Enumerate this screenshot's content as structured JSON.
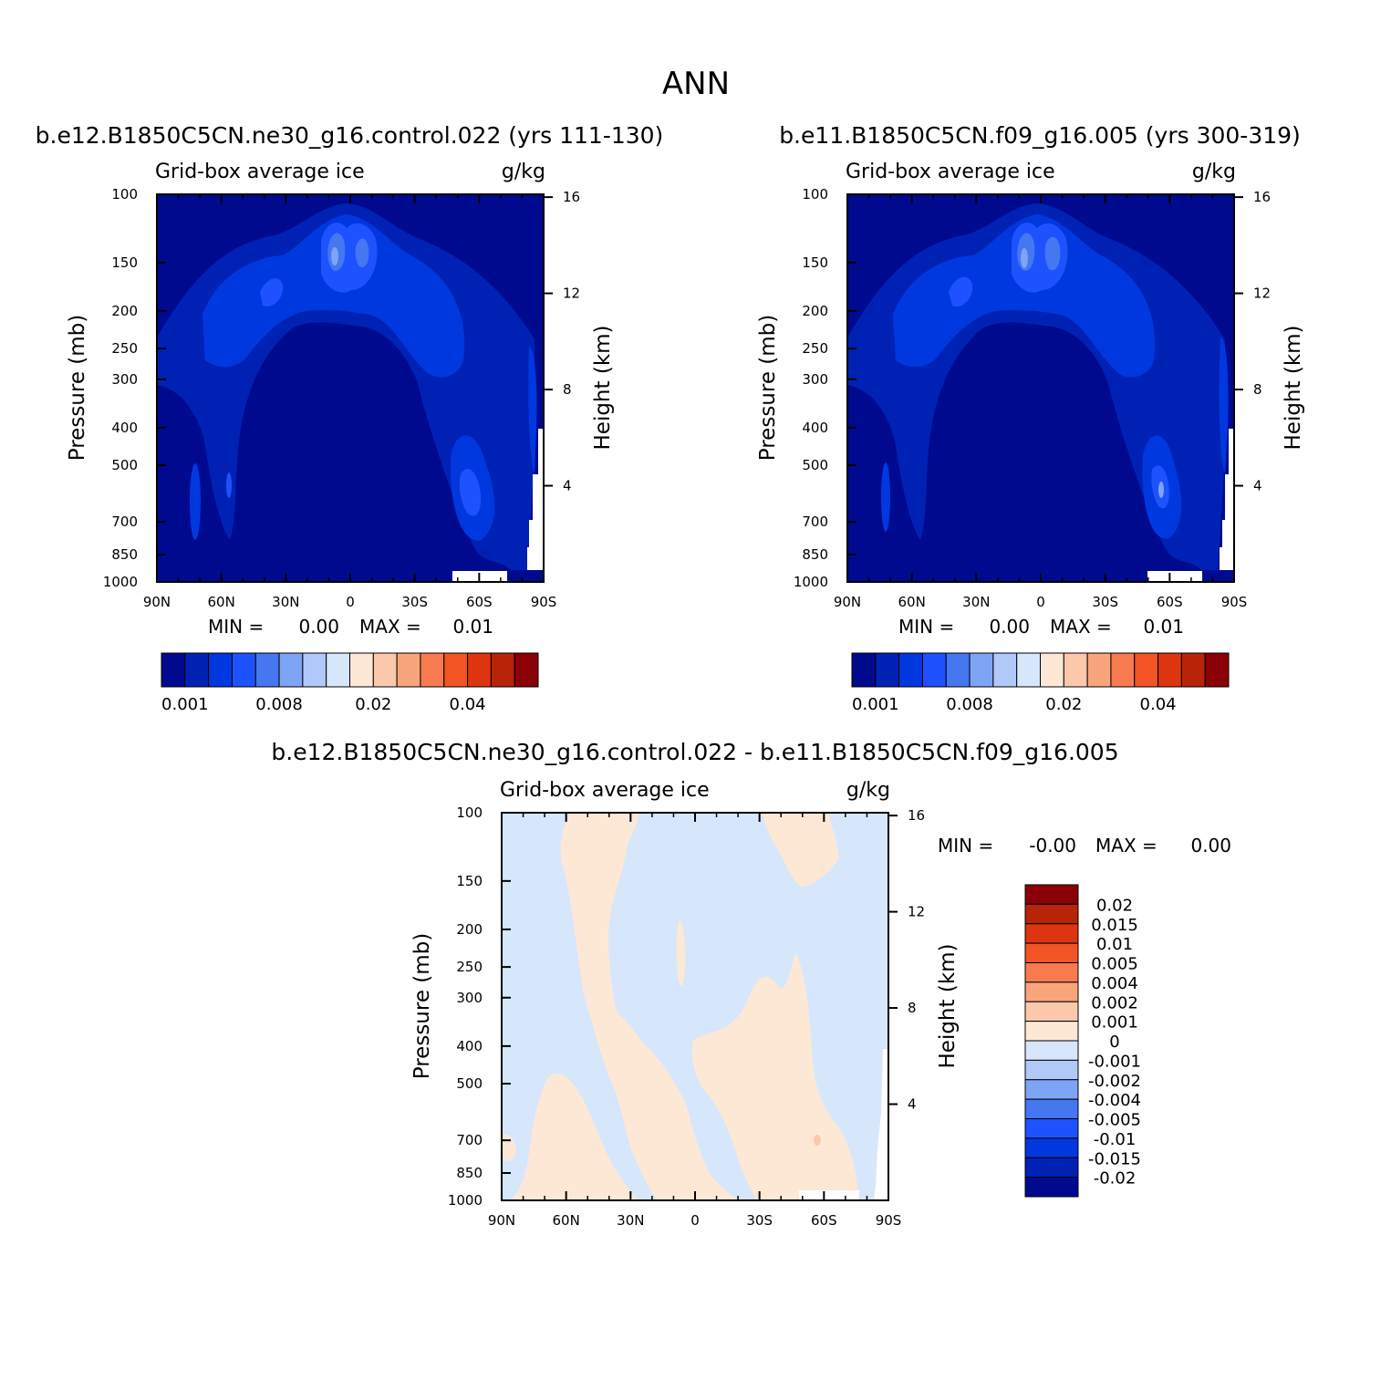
{
  "figure_title": "ANN",
  "colors": {
    "sequential_scale": [
      "#000a8f",
      "#0022b4",
      "#0038e0",
      "#1e52ff",
      "#4477f0",
      "#7ea4f6",
      "#b0c9f8",
      "#d6e7fb",
      "#fde8d6",
      "#fcc8ab",
      "#f9a57c",
      "#f87b4f",
      "#f25424",
      "#dd3510",
      "#b82407",
      "#8b0006"
    ],
    "diff_scale": [
      "#000a8f",
      "#0022b4",
      "#0038e0",
      "#1e52ff",
      "#4477f0",
      "#7ea4f6",
      "#b0c9f8",
      "#d6e7fb",
      "#fde8d6",
      "#fcc8ab",
      "#f9a57c",
      "#f87b4f",
      "#f25424",
      "#dd3510",
      "#b82407",
      "#8b0006"
    ],
    "missing": "#ffffff"
  },
  "chart_data": [
    {
      "type": "heatmap",
      "title": "b.e12.B1850C5CN.ne30_g16.control.022 (yrs 111-130)",
      "variable": "Grid-box average ice",
      "units": "g/kg",
      "xlabel": "",
      "ylabel": "Pressure (mb)",
      "ylabel_right": "Height (km)",
      "x_ticks": [
        "90N",
        "60N",
        "30N",
        "0",
        "30S",
        "60S",
        "90S"
      ],
      "y_ticks": [
        "100",
        "150",
        "200",
        "250",
        "300",
        "400",
        "500",
        "700",
        "850",
        "1000"
      ],
      "y_ticks_right": [
        "16",
        "12",
        "8",
        "4"
      ],
      "min_label": "MIN =",
      "min_value": "0.00",
      "max_label": "MAX =",
      "max_value": "0.01",
      "colorbar_labels": [
        "0.001",
        "0.008",
        "0.02",
        "0.04"
      ]
    },
    {
      "type": "heatmap",
      "title": "b.e11.B1850C5CN.f09_g16.005 (yrs 300-319)",
      "variable": "Grid-box average ice",
      "units": "g/kg",
      "xlabel": "",
      "ylabel": "Pressure (mb)",
      "ylabel_right": "Height (km)",
      "x_ticks": [
        "90N",
        "60N",
        "30N",
        "0",
        "30S",
        "60S",
        "90S"
      ],
      "y_ticks": [
        "100",
        "150",
        "200",
        "250",
        "300",
        "400",
        "500",
        "700",
        "850",
        "1000"
      ],
      "y_ticks_right": [
        "16",
        "12",
        "8",
        "4"
      ],
      "min_label": "MIN =",
      "min_value": "0.00",
      "max_label": "MAX =",
      "max_value": "0.01",
      "colorbar_labels": [
        "0.001",
        "0.008",
        "0.02",
        "0.04"
      ]
    },
    {
      "type": "heatmap",
      "title": "b.e12.B1850C5CN.ne30_g16.control.022 - b.e11.B1850C5CN.f09_g16.005",
      "variable": "Grid-box average ice",
      "units": "g/kg",
      "xlabel": "",
      "ylabel": "Pressure (mb)",
      "ylabel_right": "Height (km)",
      "x_ticks": [
        "90N",
        "60N",
        "30N",
        "0",
        "30S",
        "60S",
        "90S"
      ],
      "y_ticks": [
        "100",
        "150",
        "200",
        "250",
        "300",
        "400",
        "500",
        "700",
        "850",
        "1000"
      ],
      "y_ticks_right": [
        "16",
        "12",
        "8",
        "4"
      ],
      "min_label": "MIN =",
      "min_value": "-0.00",
      "max_label": "MAX =",
      "max_value": "0.00",
      "colorbar_labels": [
        "0.02",
        "0.015",
        "0.01",
        "0.005",
        "0.004",
        "0.002",
        "0.001",
        "0",
        "-0.001",
        "-0.002",
        "-0.004",
        "-0.005",
        "-0.01",
        "-0.015",
        "-0.02"
      ]
    }
  ]
}
